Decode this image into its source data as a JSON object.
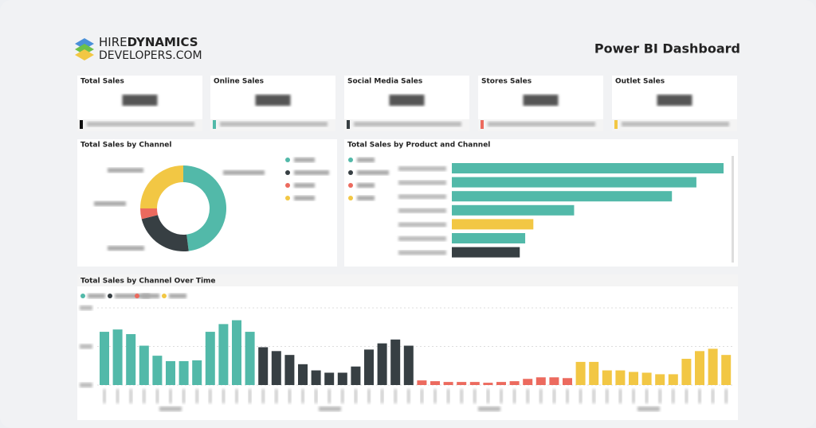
{
  "header": {
    "brand_a": "HIRE",
    "brand_b": "DYNAMICS",
    "brand_c": "DEVELOPERS.COM",
    "title": "Power BI Dashboard"
  },
  "cards": [
    {
      "title": "Total Sales",
      "color": "#111111"
    },
    {
      "title": "Online Sales",
      "color": "#52b9a9"
    },
    {
      "title": "Social Media Sales",
      "color": "#373f43"
    },
    {
      "title": "Stores Sales",
      "color": "#ec6a5e"
    },
    {
      "title": "Outlet Sales",
      "color": "#f2c744"
    }
  ],
  "chart_data": [
    {
      "type": "pie",
      "title": "Total Sales by Channel",
      "values": [
        48,
        23,
        4,
        25
      ],
      "colors": [
        "#52b9a9",
        "#373f43",
        "#ec6a5e",
        "#f2c744"
      ]
    },
    {
      "type": "bar",
      "orientation": "horizontal",
      "title": "Total Sales by Product and Channel",
      "values": [
        100,
        90,
        81,
        45,
        30,
        27,
        25
      ],
      "colors": [
        "#52b9a9",
        "#52b9a9",
        "#52b9a9",
        "#52b9a9",
        "#f2c744",
        "#52b9a9",
        "#373f43"
      ],
      "legend_colors": [
        "#52b9a9",
        "#373f43",
        "#ec6a5e",
        "#f2c744"
      ],
      "xlim": [
        0,
        100
      ]
    },
    {
      "type": "bar",
      "orientation": "vertical",
      "title": "Total Sales by Channel Over Time",
      "ylim": [
        0,
        100
      ],
      "yticks": [
        0,
        50,
        100
      ],
      "grid": true,
      "series": [
        {
          "color": "#52b9a9",
          "values": [
            69,
            72,
            66,
            51,
            38,
            31,
            31,
            32,
            69,
            79,
            84,
            69
          ]
        },
        {
          "color": "#373f43",
          "values": [
            49,
            44,
            39,
            27,
            19,
            16,
            16,
            24,
            46,
            54,
            59,
            51
          ]
        },
        {
          "color": "#ec6a5e",
          "values": [
            6,
            5,
            4,
            4,
            4,
            3,
            4,
            5,
            8,
            10,
            10,
            9
          ]
        },
        {
          "color": "#f2c744",
          "values": [
            30,
            30,
            19,
            19,
            17,
            16,
            14,
            14,
            34,
            44,
            47,
            39
          ]
        }
      ]
    }
  ]
}
